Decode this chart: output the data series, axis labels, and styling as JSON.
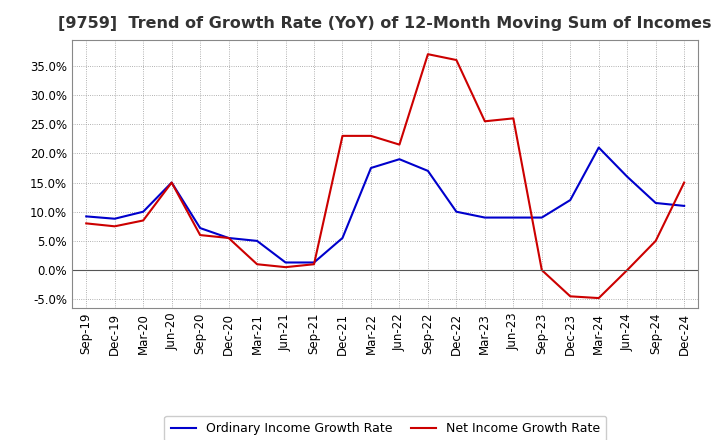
{
  "title": "[9759]  Trend of Growth Rate (YoY) of 12-Month Moving Sum of Incomes",
  "x_labels": [
    "Sep-19",
    "Dec-19",
    "Mar-20",
    "Jun-20",
    "Sep-20",
    "Dec-20",
    "Mar-21",
    "Jun-21",
    "Sep-21",
    "Dec-21",
    "Mar-22",
    "Jun-22",
    "Sep-22",
    "Dec-22",
    "Mar-23",
    "Jun-23",
    "Sep-23",
    "Dec-23",
    "Mar-24",
    "Jun-24",
    "Sep-24",
    "Dec-24"
  ],
  "ordinary_income": [
    0.092,
    0.088,
    0.1,
    0.15,
    0.072,
    0.055,
    0.05,
    0.013,
    0.013,
    0.055,
    0.175,
    0.19,
    0.17,
    0.1,
    0.09,
    0.09,
    0.09,
    0.12,
    0.21,
    0.16,
    0.115,
    0.11
  ],
  "net_income": [
    0.08,
    0.075,
    0.085,
    0.15,
    0.06,
    0.055,
    0.01,
    0.005,
    0.01,
    0.23,
    0.23,
    0.215,
    0.37,
    0.36,
    0.255,
    0.26,
    0.0,
    -0.045,
    -0.048,
    0.0,
    0.05,
    0.15
  ],
  "ordinary_color": "#0000CC",
  "net_color": "#CC0000",
  "bg_color": "#FFFFFF",
  "plot_bg_color": "#FFFFFF",
  "grid_color": "#999999",
  "ylim": [
    -0.065,
    0.395
  ],
  "yticks": [
    -0.05,
    0.0,
    0.05,
    0.1,
    0.15,
    0.2,
    0.25,
    0.3,
    0.35
  ],
  "legend_ordinary": "Ordinary Income Growth Rate",
  "legend_net": "Net Income Growth Rate",
  "line_width": 1.5,
  "title_fontsize": 11.5,
  "tick_fontsize": 8.5,
  "ytick_fontsize": 8.5
}
